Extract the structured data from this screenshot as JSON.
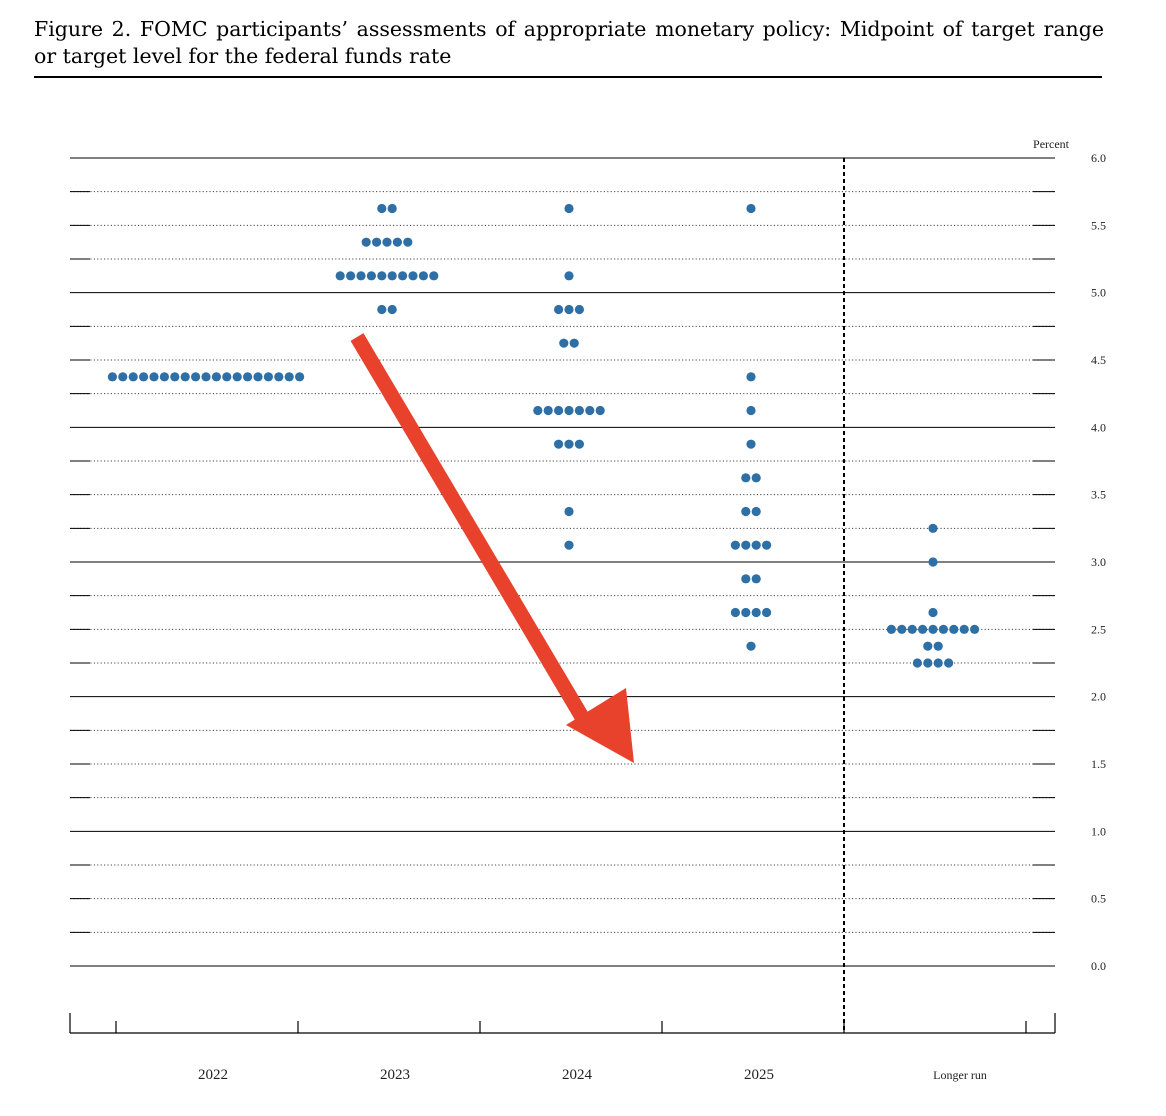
{
  "caption": {
    "text": "Figure 2.  FOMC participants’ assessments of appropriate monetary policy:  Midpoint of target range or target level for the federal funds rate"
  },
  "colors": {
    "dot": "#2e6fa6",
    "arrow": "#e8412c",
    "line": "#000000"
  },
  "annotation": {
    "type": "arrow",
    "color": "#e8412c",
    "direction": "down-right"
  },
  "chart_data": {
    "type": "scatter",
    "subtype": "dot plot",
    "title": "",
    "ylabel": "Percent",
    "xlabel": "",
    "ylim": [
      0,
      6.0
    ],
    "yticks": [
      {
        "value": 0.0,
        "label": "0.0"
      },
      {
        "value": 0.5,
        "label": "0.5"
      },
      {
        "value": 1.0,
        "label": "1.0"
      },
      {
        "value": 1.5,
        "label": "1.5"
      },
      {
        "value": 2.0,
        "label": "2.0"
      },
      {
        "value": 2.5,
        "label": "2.5"
      },
      {
        "value": 3.0,
        "label": "3.0"
      },
      {
        "value": 3.5,
        "label": "3.5"
      },
      {
        "value": 4.0,
        "label": "4.0"
      },
      {
        "value": 4.5,
        "label": "4.5"
      },
      {
        "value": 5.0,
        "label": "5.0"
      },
      {
        "value": 5.5,
        "label": "5.5"
      },
      {
        "value": 6.0,
        "label": "6.0"
      }
    ],
    "grid": "dotted every 0.25; solid every 1.0",
    "separator": "dashed vertical line before Longer run",
    "categories": [
      "2022",
      "2023",
      "2024",
      "2025",
      "Longer run"
    ],
    "dots": [
      {
        "category": "2022",
        "points": [
          {
            "y": 4.375,
            "count": 19
          }
        ]
      },
      {
        "category": "2023",
        "points": [
          {
            "y": 5.625,
            "count": 2
          },
          {
            "y": 5.375,
            "count": 5
          },
          {
            "y": 5.125,
            "count": 10
          },
          {
            "y": 4.875,
            "count": 2
          }
        ]
      },
      {
        "category": "2024",
        "points": [
          {
            "y": 5.625,
            "count": 1
          },
          {
            "y": 5.125,
            "count": 1
          },
          {
            "y": 4.875,
            "count": 3
          },
          {
            "y": 4.625,
            "count": 2
          },
          {
            "y": 4.125,
            "count": 7
          },
          {
            "y": 3.875,
            "count": 3
          },
          {
            "y": 3.375,
            "count": 1
          },
          {
            "y": 3.125,
            "count": 1
          }
        ]
      },
      {
        "category": "2025",
        "points": [
          {
            "y": 5.625,
            "count": 1
          },
          {
            "y": 4.375,
            "count": 1
          },
          {
            "y": 4.125,
            "count": 1
          },
          {
            "y": 3.875,
            "count": 1
          },
          {
            "y": 3.625,
            "count": 2
          },
          {
            "y": 3.375,
            "count": 2
          },
          {
            "y": 3.125,
            "count": 4
          },
          {
            "y": 2.875,
            "count": 2
          },
          {
            "y": 2.625,
            "count": 4
          },
          {
            "y": 2.375,
            "count": 1
          }
        ]
      },
      {
        "category": "Longer run",
        "points": [
          {
            "y": 3.25,
            "count": 1
          },
          {
            "y": 3.0,
            "count": 1
          },
          {
            "y": 2.625,
            "count": 1
          },
          {
            "y": 2.5,
            "count": 9
          },
          {
            "y": 2.375,
            "count": 2
          },
          {
            "y": 2.25,
            "count": 4
          }
        ]
      }
    ]
  }
}
